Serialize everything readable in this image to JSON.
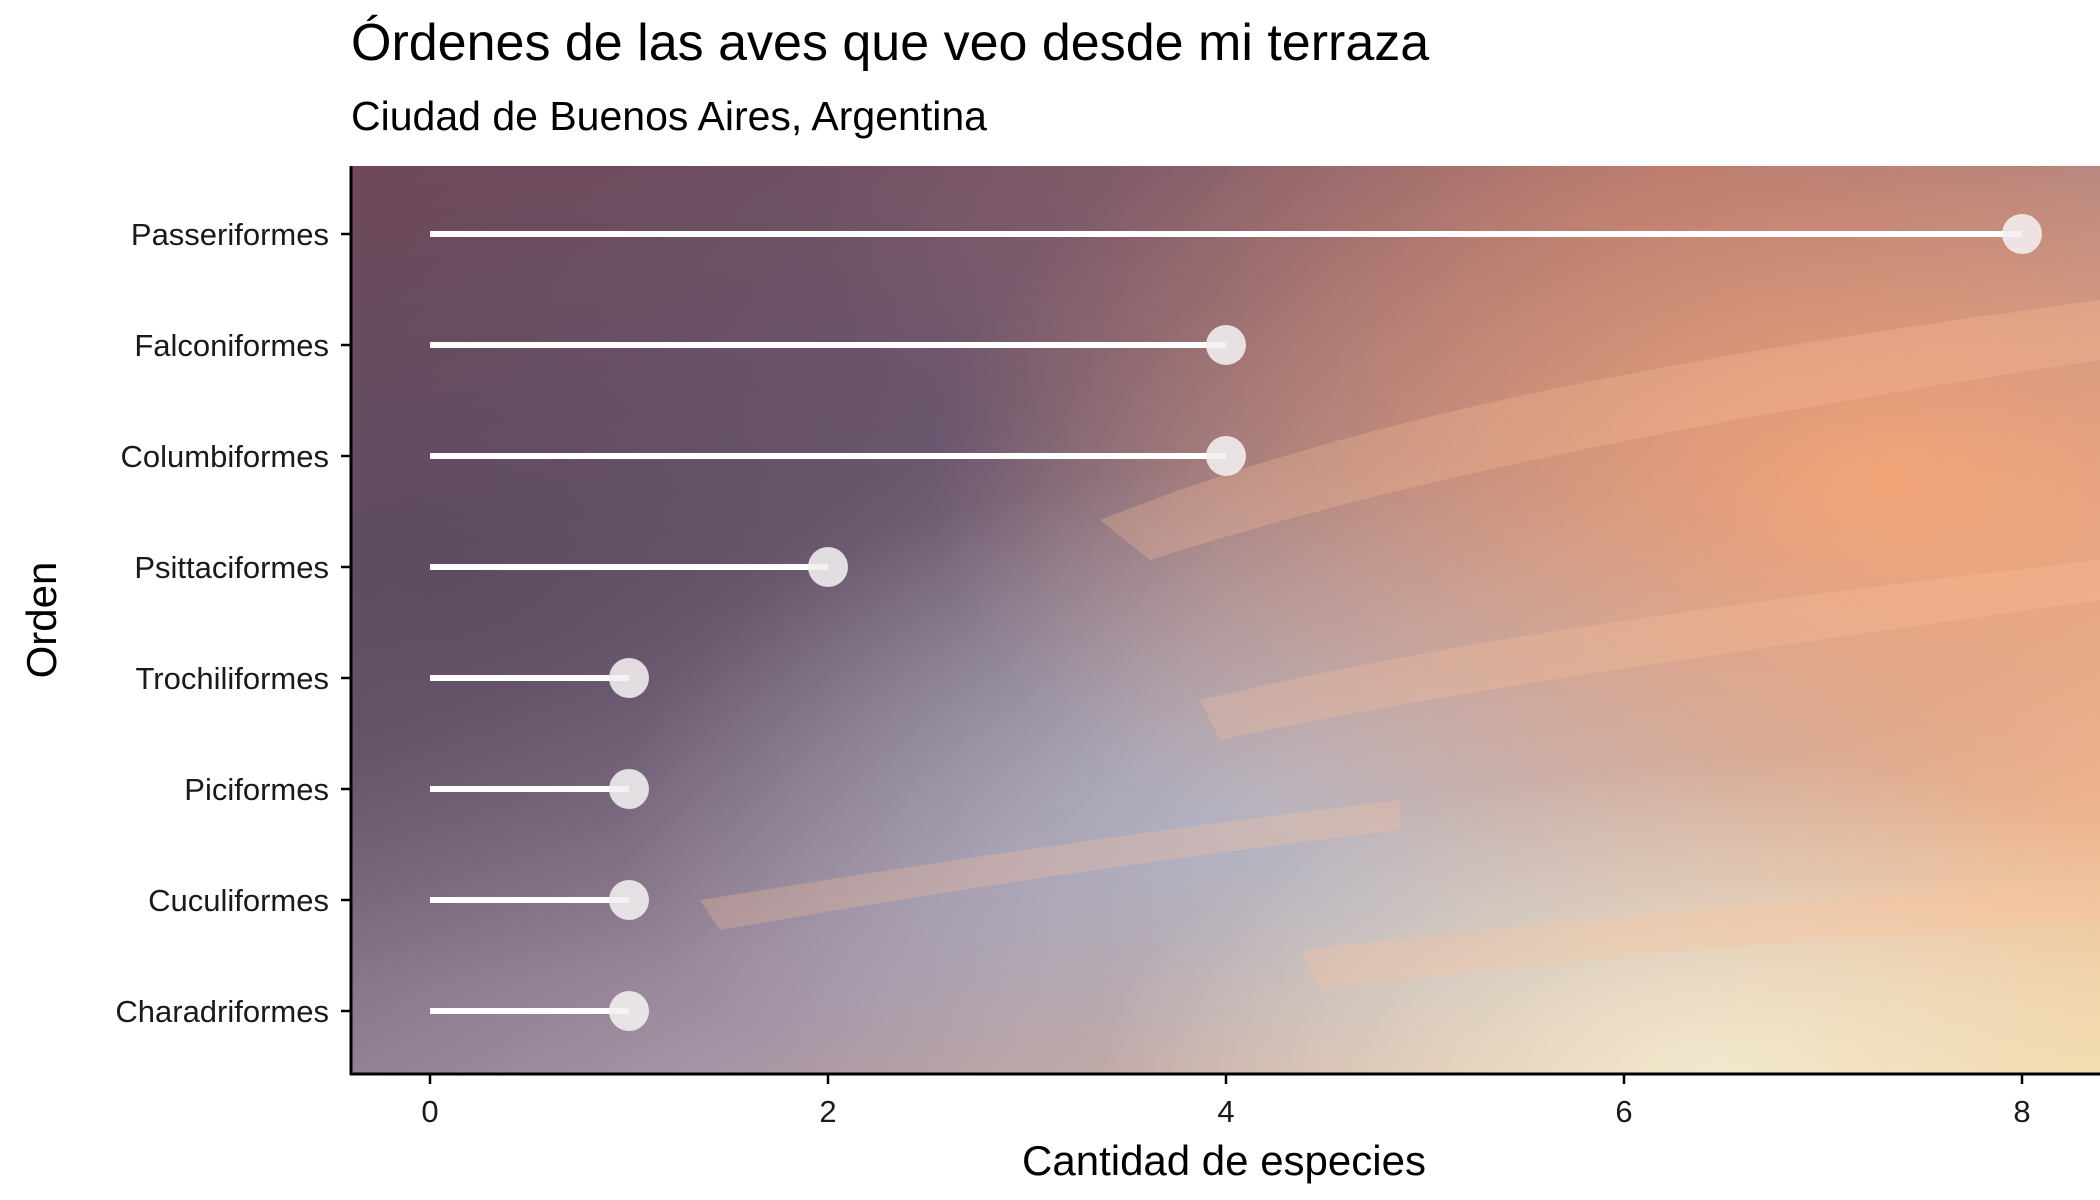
{
  "chart_data": {
    "type": "lollipop",
    "title": "Órdenes de las aves que veo desde mi terraza",
    "subtitle": "Ciudad de Buenos Aires, Argentina",
    "xlabel": "Cantidad de especies",
    "ylabel": "Orden",
    "categories": [
      "Passeriformes",
      "Falconiformes",
      "Columbiformes",
      "Psittaciformes",
      "Trochiliformes",
      "Piciformes",
      "Cuculiformes",
      "Charadriformes"
    ],
    "values": [
      8,
      4,
      4,
      2,
      1,
      1,
      1,
      1
    ],
    "xticks": [
      0,
      2,
      4,
      6,
      8
    ],
    "xlim": [
      -0.4,
      8.4
    ],
    "grid": false,
    "legend": "none",
    "background": "photograph of a sunset sky",
    "colors": {
      "stem": "#ffffff",
      "point": "#f2eff0",
      "text": "#000000",
      "axis": "#000000"
    }
  }
}
